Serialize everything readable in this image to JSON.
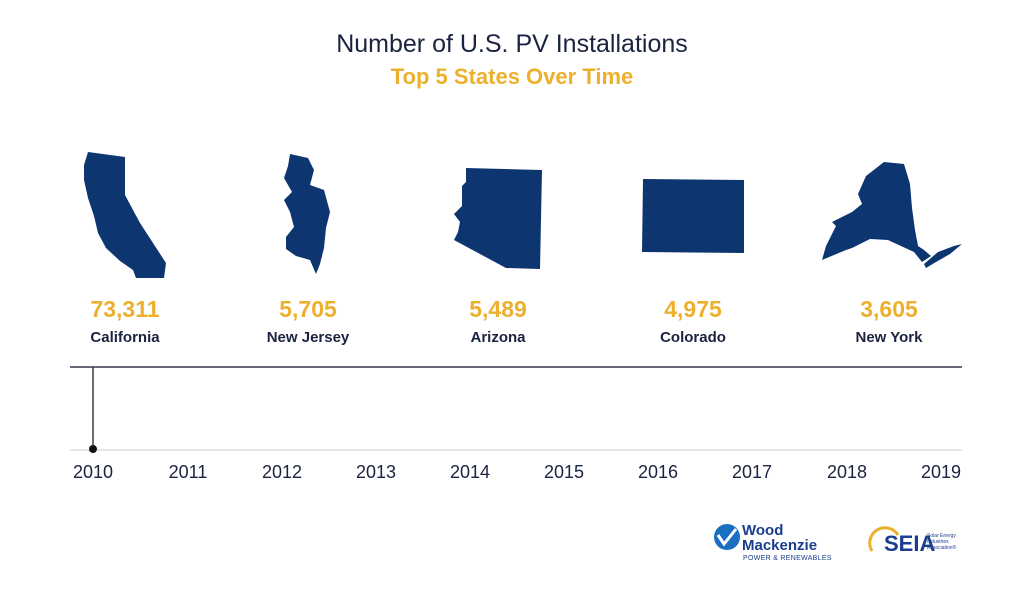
{
  "chart_data": {
    "type": "bar",
    "title": "Number of U.S. PV Installations",
    "subtitle": "Top 5 States Over Time",
    "categories": [
      "California",
      "New Jersey",
      "Arizona",
      "Colorado",
      "New York"
    ],
    "values": [
      "73,311",
      "5,705",
      "5,489",
      "4,975",
      "3,605"
    ],
    "timeline": {
      "years": [
        "2010",
        "2011",
        "2012",
        "2013",
        "2014",
        "2015",
        "2016",
        "2017",
        "2018",
        "2019"
      ],
      "current_year": "2010"
    }
  },
  "logos": {
    "woodmac_line1": "Wood",
    "woodmac_line2": "Mackenzie",
    "woodmac_tagline": "POWER & RENEWABLES",
    "seia_name": "SEIA",
    "seia_full": "Solar Energy Industries Association®"
  },
  "colors": {
    "state_fill": "#0d3570",
    "value_color": "#ecb02d",
    "text_color": "#1b2340",
    "axis_color": "#333a4a"
  }
}
